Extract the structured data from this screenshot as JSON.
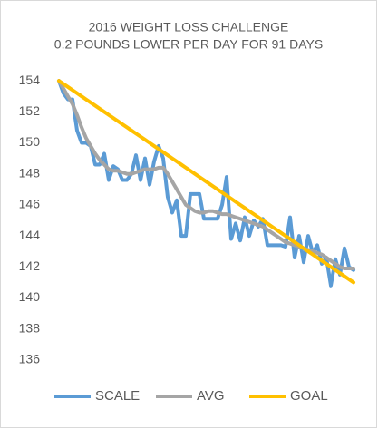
{
  "chart_data": {
    "type": "line",
    "title": "2016 WEIGHT LOSS CHALLENGE",
    "subtitle": "0.2 POUNDS LOWER PER DAY FOR 91 DAYS",
    "categories": [
      null,
      null,
      null,
      null,
      null,
      null,
      null,
      null,
      null,
      null,
      null,
      null,
      null,
      null,
      null,
      null,
      null,
      null,
      null,
      null,
      null,
      null,
      null,
      null,
      null,
      null,
      null,
      null,
      null,
      null,
      null,
      null,
      null,
      null,
      null,
      null,
      null,
      null,
      null,
      null,
      null,
      null,
      null,
      null,
      null,
      null,
      null,
      null,
      null,
      null,
      null,
      null,
      null,
      null,
      null,
      null,
      null,
      null,
      null,
      null,
      null,
      null,
      null,
      null,
      null,
      null
    ],
    "series": [
      {
        "name": "SCALE",
        "color": "#5b9bd5",
        "values": [
          154,
          153.2,
          152.8,
          152.8,
          150.8,
          150,
          150,
          149.8,
          148.6,
          148.6,
          149.3,
          147.6,
          148.5,
          148.3,
          147.6,
          147.6,
          148,
          149.2,
          147.6,
          149,
          147.3,
          148.8,
          149.8,
          149,
          146.5,
          145.5,
          146.3,
          144,
          144,
          146.7,
          146.7,
          146.7,
          145.1,
          145.1,
          145.1,
          145.1,
          146,
          147.8,
          143.8,
          144.8,
          143.7,
          145.2,
          144,
          145,
          144.6,
          145.1,
          143.4,
          143.4,
          143.4,
          143.4,
          143.3,
          145.2,
          142.6,
          144,
          142.3,
          144,
          142.9,
          143.4,
          142.2,
          142.6,
          140.8,
          142.5,
          141.5,
          143.2,
          142,
          141.8
        ]
      },
      {
        "name": "AVG",
        "color": "#a5a5a5",
        "values": [
          154,
          153.5,
          153,
          152.5,
          151.8,
          151,
          150.3,
          149.8,
          149.3,
          148.9,
          148.6,
          148.3,
          148.2,
          148.2,
          148.1,
          148,
          148,
          148.1,
          148.2,
          148.3,
          148.3,
          148.3,
          148.4,
          148.4,
          148,
          147.5,
          147,
          146.5,
          146,
          145.8,
          145.6,
          145.5,
          145.5,
          145.6,
          145.6,
          145.5,
          145.4,
          145.4,
          145.3,
          145.2,
          145.1,
          145,
          144.9,
          144.8,
          144.7,
          144.6,
          144.4,
          144.2,
          144,
          143.8,
          143.6,
          143.5,
          143.4,
          143.3,
          143.2,
          143.1,
          143,
          142.9,
          142.8,
          142.6,
          142.4,
          142.2,
          142,
          141.9,
          141.9,
          141.9
        ]
      },
      {
        "name": "GOAL",
        "color": "#ffc000",
        "values": [
          154,
          153.8,
          153.6,
          153.4,
          153.2,
          153,
          152.8,
          152.6,
          152.4,
          152.2,
          152,
          151.8,
          151.6,
          151.4,
          151.2,
          151,
          150.8,
          150.6,
          150.4,
          150.2,
          150,
          149.8,
          149.6,
          149.4,
          149.2,
          149,
          148.8,
          148.6,
          148.4,
          148.2,
          148,
          147.8,
          147.6,
          147.4,
          147.2,
          147,
          146.8,
          146.6,
          146.4,
          146.2,
          146,
          145.8,
          145.6,
          145.4,
          145.2,
          145,
          144.8,
          144.6,
          144.4,
          144.2,
          144,
          143.8,
          143.6,
          143.4,
          143.2,
          143,
          142.8,
          142.6,
          142.4,
          142.2,
          142,
          141.8,
          141.6,
          141.4,
          141.2,
          141
        ]
      }
    ],
    "ylim": [
      135,
      155
    ],
    "yticks": [
      136,
      138,
      140,
      142,
      144,
      146,
      148,
      150,
      152,
      154
    ],
    "grid": false,
    "legend": "bottom"
  }
}
